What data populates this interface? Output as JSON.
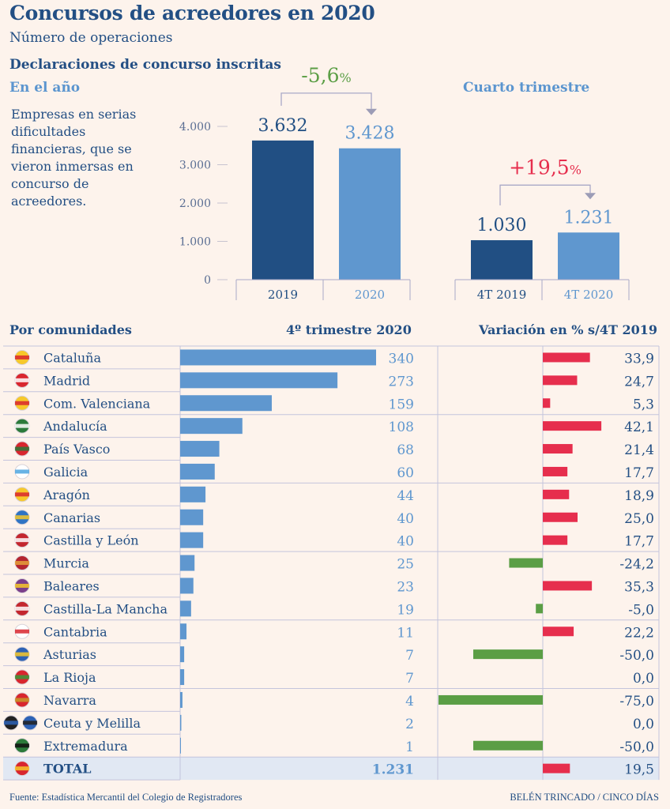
{
  "header": {
    "title": "Concursos de acreedores en 2020",
    "subtitle": "Número de operaciones",
    "section": "Declaraciones de concurso inscritas",
    "year_label": "En el año",
    "quarter_label": "Cuarto trimestre",
    "description": "Empresas en serias dificultades financieras, que se vieron inmersas en concurso de acreedores."
  },
  "colors": {
    "dark_blue": "#214f83",
    "light_blue": "#5f97cf",
    "red": "#e62e4d",
    "green": "#5b9e45",
    "background": "#fdf3ec",
    "total_row": "#e1e8f3"
  },
  "chart_data": [
    {
      "type": "bar",
      "title": "En el año",
      "categories": [
        "2019",
        "2020"
      ],
      "values": [
        3632,
        3428
      ],
      "value_labels": [
        "3.632",
        "3.428"
      ],
      "ylim": [
        0,
        4000
      ],
      "yticks": [
        0,
        1000,
        2000,
        3000,
        4000
      ],
      "ytick_labels": [
        "0",
        "1.000",
        "2.000",
        "3.000",
        "4.000"
      ],
      "change_label": "-5,6",
      "change_unit": "%",
      "change_color": "green"
    },
    {
      "type": "bar",
      "title": "Cuarto trimestre",
      "categories": [
        "4T 2019",
        "4T 2020"
      ],
      "values": [
        1030,
        1231
      ],
      "value_labels": [
        "1.030",
        "1.231"
      ],
      "ylim": [
        0,
        4000
      ],
      "change_label": "+19,5",
      "change_unit": "%",
      "change_color": "red"
    },
    {
      "type": "table",
      "title": "Por comunidades",
      "columns": [
        "Por comunidades",
        "4º trimestre 2020",
        "Variación en % s/4T 2019"
      ],
      "rows": [
        {
          "region": "Cataluña",
          "flag": "flag-cataluna",
          "q4_2020": 340,
          "q4_label": "340",
          "variation": 33.9,
          "variation_label": "33,9"
        },
        {
          "region": "Madrid",
          "flag": "flag-madrid",
          "q4_2020": 273,
          "q4_label": "273",
          "variation": 24.7,
          "variation_label": "24,7"
        },
        {
          "region": "Com. Valenciana",
          "flag": "flag-valenciana",
          "q4_2020": 159,
          "q4_label": "159",
          "variation": 5.3,
          "variation_label": "5,3"
        },
        {
          "region": "Andalucía",
          "flag": "flag-andalucia",
          "q4_2020": 108,
          "q4_label": "108",
          "variation": 42.1,
          "variation_label": "42,1"
        },
        {
          "region": "País Vasco",
          "flag": "flag-pais-vasco",
          "q4_2020": 68,
          "q4_label": "68",
          "variation": 21.4,
          "variation_label": "21,4"
        },
        {
          "region": "Galicia",
          "flag": "flag-galicia",
          "q4_2020": 60,
          "q4_label": "60",
          "variation": 17.7,
          "variation_label": "17,7"
        },
        {
          "region": "Aragón",
          "flag": "flag-aragon",
          "q4_2020": 44,
          "q4_label": "44",
          "variation": 18.9,
          "variation_label": "18,9"
        },
        {
          "region": "Canarias",
          "flag": "flag-canarias",
          "q4_2020": 40,
          "q4_label": "40",
          "variation": 25.0,
          "variation_label": "25,0"
        },
        {
          "region": "Castilla y León",
          "flag": "flag-castilla-leon",
          "q4_2020": 40,
          "q4_label": "40",
          "variation": 17.7,
          "variation_label": "17,7"
        },
        {
          "region": "Murcia",
          "flag": "flag-murcia",
          "q4_2020": 25,
          "q4_label": "25",
          "variation": -24.2,
          "variation_label": "-24,2"
        },
        {
          "region": "Baleares",
          "flag": "flag-baleares",
          "q4_2020": 23,
          "q4_label": "23",
          "variation": 35.3,
          "variation_label": "35,3"
        },
        {
          "region": "Castilla-La Mancha",
          "flag": "flag-castilla-la-mancha",
          "q4_2020": 19,
          "q4_label": "19",
          "variation": -5.0,
          "variation_label": "-5,0"
        },
        {
          "region": "Cantabria",
          "flag": "flag-cantabria",
          "q4_2020": 11,
          "q4_label": "11",
          "variation": 22.2,
          "variation_label": "22,2"
        },
        {
          "region": "Asturias",
          "flag": "flag-asturias",
          "q4_2020": 7,
          "q4_label": "7",
          "variation": -50.0,
          "variation_label": "-50,0"
        },
        {
          "region": "La Rioja",
          "flag": "flag-la-rioja",
          "q4_2020": 7,
          "q4_label": "7",
          "variation": 0.0,
          "variation_label": "0,0"
        },
        {
          "region": "Navarra",
          "flag": "flag-navarra",
          "q4_2020": 4,
          "q4_label": "4",
          "variation": -75.0,
          "variation_label": "-75,0"
        },
        {
          "region": "Ceuta y Melilla",
          "flag": "flag-ceuta-melilla",
          "q4_2020": 2,
          "q4_label": "2",
          "variation": 0.0,
          "variation_label": "0,0"
        },
        {
          "region": "Extremadura",
          "flag": "flag-extremadura",
          "q4_2020": 1,
          "q4_label": "1",
          "variation": -50.0,
          "variation_label": "-50,0"
        }
      ],
      "total": {
        "region": "TOTAL",
        "flag": "flag-espana",
        "q4_2020": 1231,
        "q4_label": "1.231",
        "variation": 19.5,
        "variation_label": "19,5"
      }
    }
  ],
  "footer": {
    "source": "Fuente: Estadística Mercantil del Colegio de Registradores",
    "credit": "BELÉN TRINCADO / CINCO DÍAS"
  }
}
